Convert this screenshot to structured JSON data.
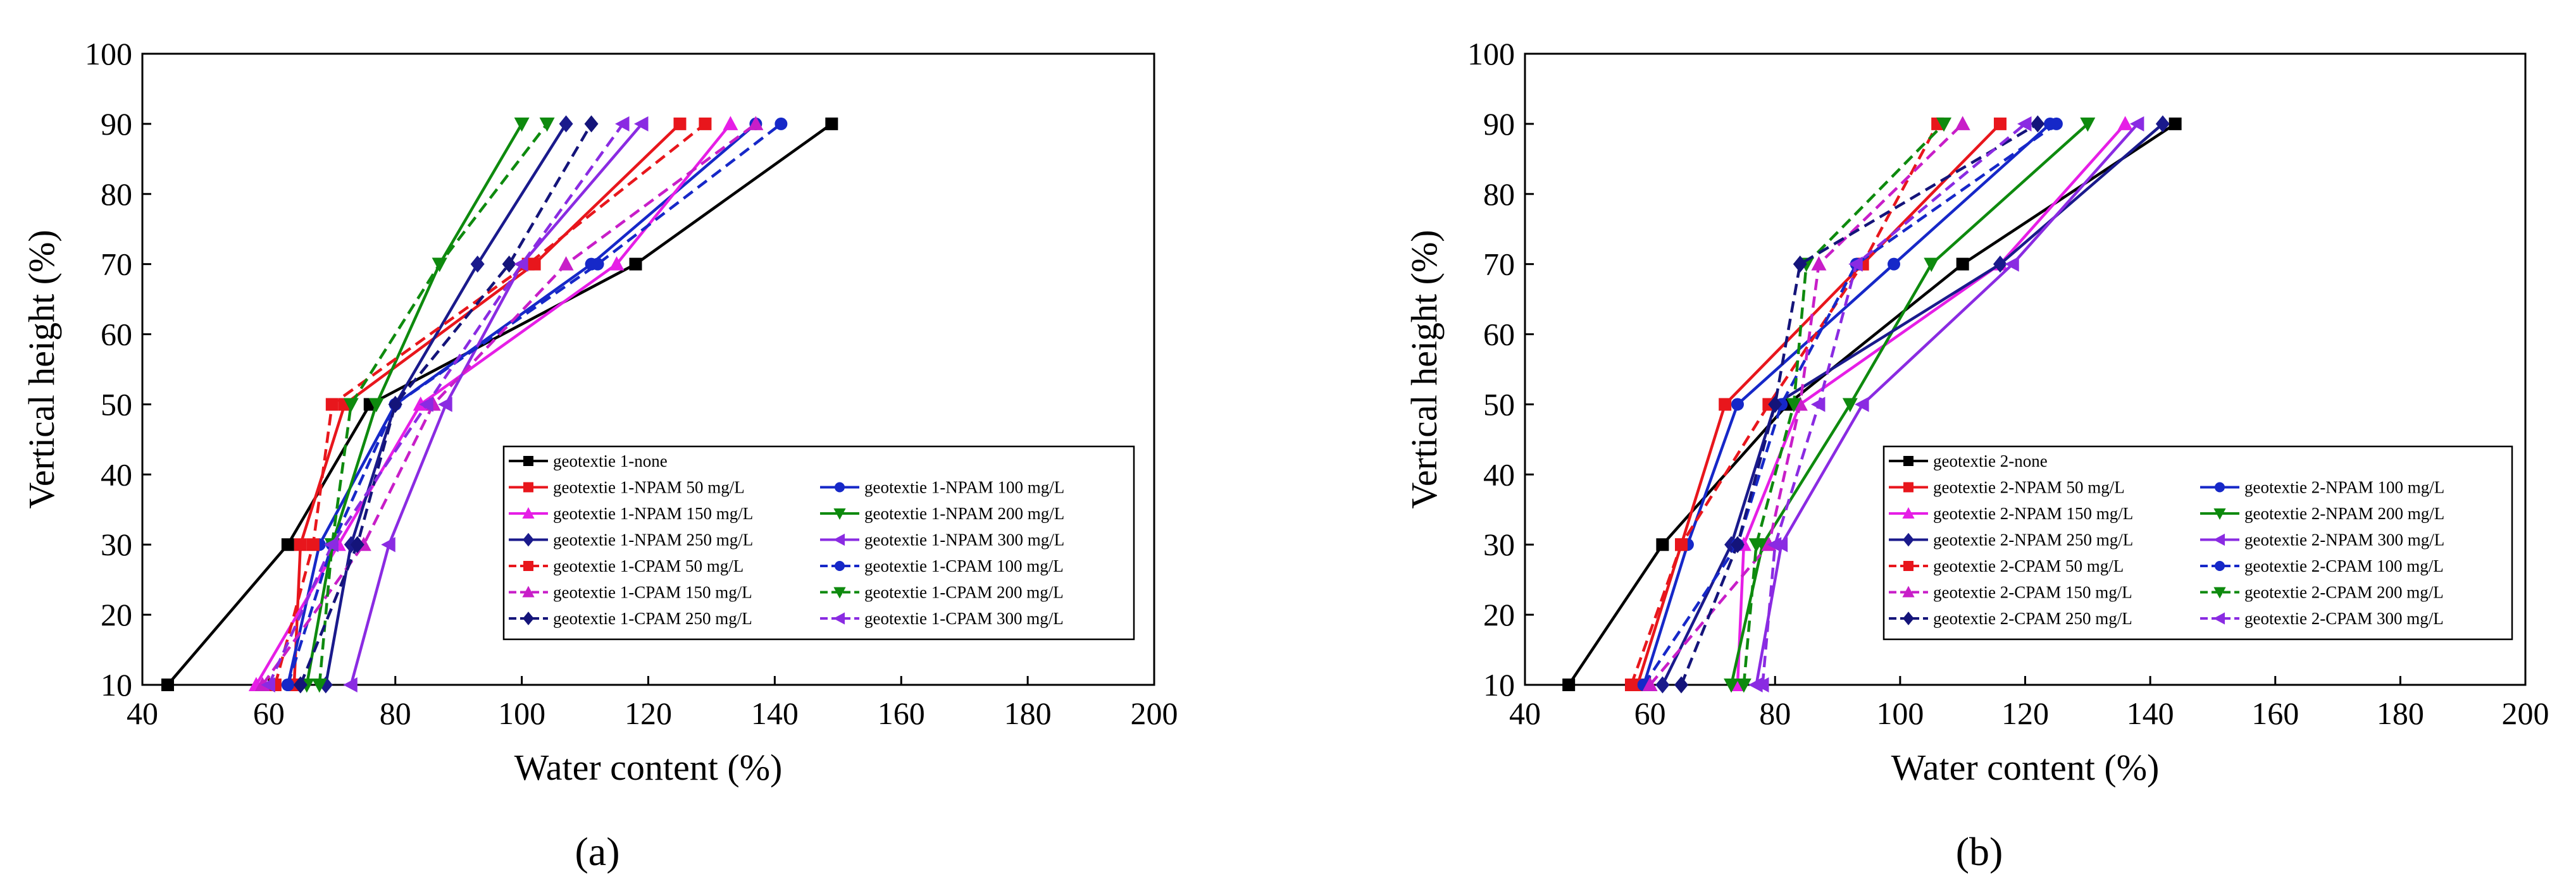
{
  "figure": {
    "panels": [
      {
        "label": "(a)"
      },
      {
        "label": "(b)"
      }
    ]
  },
  "chart_data": [
    {
      "type": "line",
      "title": "",
      "xlabel": "Water content (%)",
      "ylabel": "Vertical height (%)",
      "xlim": [
        40,
        200
      ],
      "ylim": [
        10,
        100
      ],
      "xticks": [
        "40",
        "60",
        "80",
        "100",
        "120",
        "140",
        "160",
        "180",
        "200"
      ],
      "yticks": [
        "10",
        "20",
        "30",
        "40",
        "50",
        "60",
        "70",
        "80",
        "90",
        "100"
      ],
      "legend_position": "lower-right",
      "series": [
        {
          "name": "geotextie 1-none",
          "color": "#000000",
          "dash": false,
          "marker": "square",
          "x": [
            44,
            63,
            76,
            118,
            149
          ],
          "y": [
            10,
            30,
            50,
            70,
            90
          ]
        },
        {
          "name": "geotextie 1-NPAM 50 mg/L",
          "color": "#e8161c",
          "dash": false,
          "marker": "square",
          "x": [
            64,
            65,
            72,
            102,
            125
          ],
          "y": [
            10,
            30,
            50,
            70,
            90
          ]
        },
        {
          "name": "geotextie 1-NPAM 100 mg/L",
          "color": "#1628c8",
          "dash": false,
          "marker": "circle",
          "x": [
            63,
            68,
            80,
            111,
            137
          ],
          "y": [
            10,
            30,
            50,
            70,
            90
          ]
        },
        {
          "name": "geotextie 1-NPAM 150 mg/L",
          "color": "#e61ee6",
          "dash": false,
          "marker": "triangle-up",
          "x": [
            58,
            71,
            84,
            115,
            133
          ],
          "y": [
            10,
            30,
            50,
            70,
            90
          ]
        },
        {
          "name": "geotextie 1-NPAM 200 mg/L",
          "color": "#0e8a0e",
          "dash": false,
          "marker": "triangle-down",
          "x": [
            66,
            70,
            77,
            87,
            100
          ],
          "y": [
            10,
            30,
            50,
            70,
            90
          ]
        },
        {
          "name": "geotextie 1-NPAM 250 mg/L",
          "color": "#1a1a8c",
          "dash": false,
          "marker": "diamond",
          "x": [
            69,
            73,
            80,
            93,
            107
          ],
          "y": [
            10,
            30,
            50,
            70,
            90
          ]
        },
        {
          "name": "geotextie 1-NPAM 300 mg/L",
          "color": "#8a2be2",
          "dash": false,
          "marker": "triangle-left",
          "x": [
            73,
            79,
            88,
            100,
            119
          ],
          "y": [
            10,
            30,
            50,
            70,
            90
          ]
        },
        {
          "name": "geotextie 1-CPAM 50 mg/L",
          "color": "#e8161c",
          "dash": true,
          "marker": "square",
          "x": [
            61,
            67,
            70,
            101,
            129
          ],
          "y": [
            10,
            30,
            50,
            70,
            90
          ]
        },
        {
          "name": "geotextie 1-CPAM 100 mg/L",
          "color": "#1628c8",
          "dash": true,
          "marker": "circle",
          "x": [
            63,
            70,
            80,
            112,
            141
          ],
          "y": [
            10,
            30,
            50,
            70,
            90
          ]
        },
        {
          "name": "geotextie 1-CPAM 150 mg/L",
          "color": "#c81ec8",
          "dash": true,
          "marker": "triangle-up",
          "x": [
            59,
            75,
            86,
            107,
            137
          ],
          "y": [
            10,
            30,
            50,
            70,
            90
          ]
        },
        {
          "name": "geotextie 1-CPAM 200 mg/L",
          "color": "#0e8a0e",
          "dash": true,
          "marker": "triangle-down",
          "x": [
            68,
            70,
            73,
            87,
            104
          ],
          "y": [
            10,
            30,
            50,
            70,
            90
          ]
        },
        {
          "name": "geotextie 1-CPAM 250 mg/L",
          "color": "#14147a",
          "dash": true,
          "marker": "diamond",
          "x": [
            65,
            74,
            80,
            98,
            111
          ],
          "y": [
            10,
            30,
            50,
            70,
            90
          ]
        },
        {
          "name": "geotextie 1-CPAM 300 mg/L",
          "color": "#8a2be2",
          "dash": true,
          "marker": "triangle-left",
          "x": [
            60,
            70,
            85,
            100,
            116
          ],
          "y": [
            10,
            30,
            50,
            70,
            90
          ]
        }
      ]
    },
    {
      "type": "line",
      "title": "",
      "xlabel": "Water content (%)",
      "ylabel": "Vertical height (%)",
      "xlim": [
        40,
        200
      ],
      "ylim": [
        10,
        100
      ],
      "xticks": [
        "40",
        "60",
        "80",
        "100",
        "120",
        "140",
        "160",
        "180",
        "200"
      ],
      "yticks": [
        "10",
        "20",
        "30",
        "40",
        "50",
        "60",
        "70",
        "80",
        "90",
        "100"
      ],
      "legend_position": "lower-right",
      "series": [
        {
          "name": "geotextie 2-none",
          "color": "#000000",
          "dash": false,
          "marker": "square",
          "x": [
            47,
            62,
            82,
            110,
            144
          ],
          "y": [
            10,
            30,
            50,
            70,
            90
          ]
        },
        {
          "name": "geotextie 2-NPAM 50 mg/L",
          "color": "#e8161c",
          "dash": false,
          "marker": "square",
          "x": [
            58,
            65,
            72,
            94,
            116
          ],
          "y": [
            10,
            30,
            50,
            70,
            90
          ]
        },
        {
          "name": "geotextie 2-NPAM 100 mg/L",
          "color": "#1628c8",
          "dash": false,
          "marker": "circle",
          "x": [
            59,
            66,
            74,
            99,
            124
          ],
          "y": [
            10,
            30,
            50,
            70,
            90
          ]
        },
        {
          "name": "geotextie 2-NPAM 150 mg/L",
          "color": "#e61ee6",
          "dash": false,
          "marker": "triangle-up",
          "x": [
            74,
            75,
            84,
            116,
            136
          ],
          "y": [
            10,
            30,
            50,
            70,
            90
          ]
        },
        {
          "name": "geotextie 2-NPAM 200 mg/L",
          "color": "#0e8a0e",
          "dash": false,
          "marker": "triangle-down",
          "x": [
            73,
            78,
            92,
            105,
            130
          ],
          "y": [
            10,
            30,
            50,
            70,
            90
          ]
        },
        {
          "name": "geotextie 2-NPAM 250 mg/L",
          "color": "#1a1a8c",
          "dash": false,
          "marker": "diamond",
          "x": [
            62,
            73,
            80,
            116,
            142
          ],
          "y": [
            10,
            30,
            50,
            70,
            90
          ]
        },
        {
          "name": "geotextie 2-NPAM 300 mg/L",
          "color": "#8a2be2",
          "dash": false,
          "marker": "triangle-left",
          "x": [
            77,
            81,
            94,
            118,
            138
          ],
          "y": [
            10,
            30,
            50,
            70,
            90
          ]
        },
        {
          "name": "geotextie 2-CPAM 50 mg/L",
          "color": "#e8161c",
          "dash": true,
          "marker": "square",
          "x": [
            57,
            65,
            79,
            94,
            106
          ],
          "y": [
            10,
            30,
            50,
            70,
            90
          ]
        },
        {
          "name": "geotextie 2-CPAM 100 mg/L",
          "color": "#1628c8",
          "dash": true,
          "marker": "circle",
          "x": [
            59,
            74,
            81,
            93,
            125
          ],
          "y": [
            10,
            30,
            50,
            70,
            90
          ]
        },
        {
          "name": "geotextie 2-CPAM 150 mg/L",
          "color": "#c81ec8",
          "dash": true,
          "marker": "triangle-up",
          "x": [
            60,
            79,
            84,
            87,
            110
          ],
          "y": [
            10,
            30,
            50,
            70,
            90
          ]
        },
        {
          "name": "geotextie 2-CPAM 200 mg/L",
          "color": "#0e8a0e",
          "dash": true,
          "marker": "triangle-down",
          "x": [
            75,
            77,
            83,
            85,
            107
          ],
          "y": [
            10,
            30,
            50,
            70,
            90
          ]
        },
        {
          "name": "geotextie 2-CPAM 250 mg/L",
          "color": "#14147a",
          "dash": true,
          "marker": "diamond",
          "x": [
            65,
            74,
            80,
            84,
            122
          ],
          "y": [
            10,
            30,
            50,
            70,
            90
          ]
        },
        {
          "name": "geotextie 2-CPAM 300 mg/L",
          "color": "#8a2be2",
          "dash": true,
          "marker": "triangle-left",
          "x": [
            78,
            80,
            87,
            93,
            120
          ],
          "y": [
            10,
            30,
            50,
            70,
            90
          ]
        }
      ]
    }
  ]
}
